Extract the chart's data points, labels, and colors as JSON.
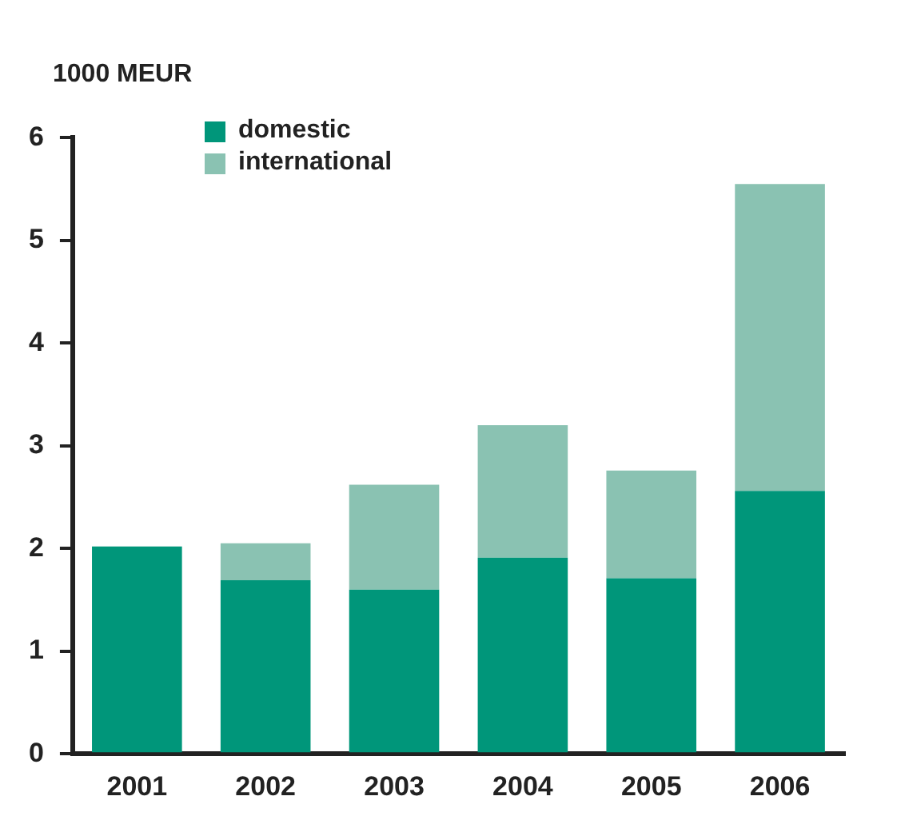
{
  "chart_data": {
    "type": "bar",
    "ylabel": "1000 MEUR",
    "categories": [
      "2001",
      "2002",
      "2003",
      "2004",
      "2005",
      "2006"
    ],
    "stacked": true,
    "series": [
      {
        "name": "domestic",
        "color": "#00967a",
        "values": [
          2.02,
          1.69,
          1.6,
          1.91,
          1.71,
          2.56
        ]
      },
      {
        "name": "international",
        "color": "#8ac2b2",
        "values": [
          0,
          0.36,
          1.02,
          1.29,
          1.05,
          2.99
        ]
      }
    ],
    "ylim": [
      0,
      6
    ],
    "yticks": [
      0,
      1,
      2,
      3,
      4,
      5,
      6
    ],
    "grid": false,
    "legend": "top left"
  }
}
